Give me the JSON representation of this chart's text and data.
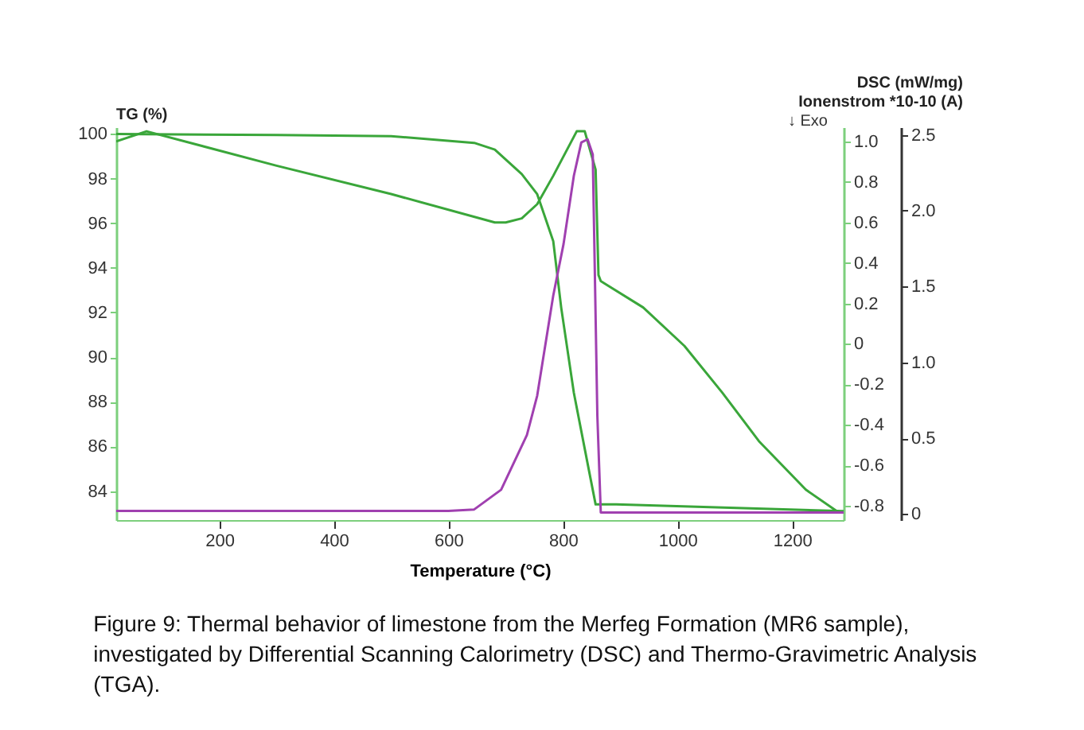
{
  "chart_data": {
    "type": "line",
    "xlabel": "Temperature (°C)",
    "ylabel": "TG (%)",
    "y2label": "DSC (mW/mg)",
    "y3label": "Ionenstrom *10-10 (A)",
    "annotations": [
      "↓ Exo",
      "Figure 9: Thermal behavior of limestone from the Merfeg Formation (MR6 sample), investigated by Differential Scanning Calorimetry (DSC) and Thermo-Gravimetric Analysis (TGA)."
    ],
    "xlim": [
      20,
      1290
    ],
    "xticks": [
      200,
      400,
      600,
      800,
      1000,
      1200
    ],
    "ylim": [
      82.7,
      100.3
    ],
    "yticks": [
      84,
      86,
      88,
      90,
      92,
      94,
      96,
      98,
      100
    ],
    "y2lim": [
      -0.87,
      1.07
    ],
    "y2ticks": [
      {
        "value": -0.8,
        "label": "-0.8"
      },
      {
        "value": -0.6,
        "label": "-0.6"
      },
      {
        "value": -0.4,
        "label": "-0.4"
      },
      {
        "value": -0.2,
        "label": "-0.2"
      },
      0,
      {
        "value": 0.2,
        "label": "0.2"
      },
      {
        "value": 0.4,
        "label": "0.4"
      },
      {
        "value": 0.6,
        "label": "0.6"
      },
      {
        "value": 0.8,
        "label": "0.8"
      },
      {
        "value": 1.0,
        "label": "1.0"
      }
    ],
    "y3lim": [
      -0.04,
      2.55
    ],
    "y3ticks": [
      0,
      {
        "value": 0.5,
        "label": "0.5"
      },
      {
        "value": 1.0,
        "label": "1.0"
      },
      {
        "value": 1.5,
        "label": "1.5"
      },
      {
        "value": 2.0,
        "label": "2.0"
      },
      {
        "value": 2.5,
        "label": "2.5"
      }
    ],
    "grid": false,
    "series": [
      {
        "color": "#3aa63a",
        "x": [
          20,
          300,
          500,
          645,
          681,
          728,
          755,
          783,
          797,
          819,
          844,
          857,
          893,
          1290
        ],
        "values": [
          100.0,
          99.95,
          99.9,
          99.6,
          99.3,
          98.2,
          97.3,
          95.2,
          92.2,
          88.4,
          85.1,
          83.4,
          83.4,
          83.1
        ]
      },
      {
        "color": "#3aa63a",
        "axis": "y2",
        "x": [
          20,
          73,
          300,
          500,
          681,
          700,
          728,
          755,
          783,
          824,
          838,
          857,
          862,
          866,
          940,
          1012,
          1078,
          1142,
          1224,
          1280
        ],
        "values": [
          1.0,
          1.05,
          0.88,
          0.74,
          0.6,
          0.6,
          0.62,
          0.69,
          0.83,
          1.05,
          1.05,
          0.86,
          0.34,
          0.31,
          0.18,
          -0.01,
          -0.24,
          -0.48,
          -0.72,
          -0.83
        ]
      },
      {
        "color": "#a040b0",
        "axis": "y3",
        "x": [
          20,
          600,
          645,
          692,
          737,
          755,
          783,
          801,
          819,
          832,
          843,
          852,
          860,
          866,
          1290
        ],
        "values": [
          0.02,
          0.02,
          0.03,
          0.16,
          0.52,
          0.78,
          1.44,
          1.78,
          2.23,
          2.45,
          2.47,
          2.37,
          0.65,
          0.01,
          0.01
        ]
      }
    ]
  }
}
